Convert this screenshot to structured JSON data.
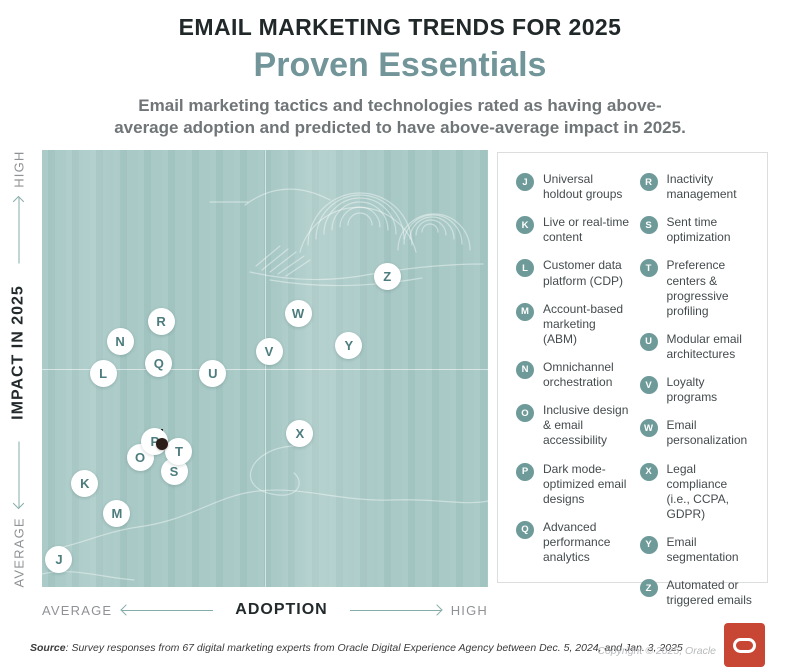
{
  "header": {
    "eyebrow": "EMAIL MARKETING TRENDS FOR 2025",
    "title": "Proven Essentials",
    "description": "Email marketing tactics and technologies rated as having above-average adoption and predicted to have above-average impact in 2025."
  },
  "colors": {
    "plot_background": "#A5C7C4",
    "title_accent": "#719598",
    "marker_letter": "#4C7C7D",
    "legend_dot": "#6E9B99",
    "axis_arrow": "#85ACAA",
    "pin_dot": "#2B1E18",
    "oracle_red": "#C74634"
  },
  "chart_data": {
    "type": "scatter",
    "title": "Proven Essentials",
    "x_axis": {
      "label": "ADOPTION",
      "min_label": "AVERAGE",
      "max_label": "HIGH",
      "range": [
        0,
        100
      ]
    },
    "y_axis": {
      "label": "IMPACT IN 2025",
      "min_label": "AVERAGE",
      "max_label": "HIGH",
      "range": [
        0,
        100
      ]
    },
    "grid": "center-quadrant-lines",
    "legend_position": "right-panel",
    "points": [
      {
        "letter": "J",
        "label": "Universal holdout groups",
        "adoption": 3.8,
        "impact": 6.2
      },
      {
        "letter": "K",
        "label": "Live or real-time content",
        "adoption": 9.6,
        "impact": 23.7
      },
      {
        "letter": "L",
        "label": "Customer data platform (CDP)",
        "adoption": 13.7,
        "impact": 48.9
      },
      {
        "letter": "M",
        "label": "Account-based marketing (ABM)",
        "adoption": 16.8,
        "impact": 16.9
      },
      {
        "letter": "N",
        "label": "Omnichannel orchestration",
        "adoption": 17.5,
        "impact": 56.2
      },
      {
        "letter": "O",
        "label": "Inclusive design & email accessibility",
        "adoption": 22.0,
        "impact": 29.7
      },
      {
        "letter": "P",
        "label": "Dark mode-optimized email designs",
        "adoption": 25.3,
        "impact": 33.3
      },
      {
        "letter": "Q",
        "label": "Advanced performance analytics",
        "adoption": 26.2,
        "impact": 51.1
      },
      {
        "letter": "R",
        "label": "Inactivity management",
        "adoption": 26.7,
        "impact": 60.7
      },
      {
        "letter": "S",
        "label": "Sent time optimization",
        "adoption": 29.6,
        "impact": 26.5
      },
      {
        "letter": "T",
        "label": "Preference centers & progressive profiling",
        "adoption": 30.7,
        "impact": 31.0
      },
      {
        "letter": "U",
        "label": "Modular email architectures",
        "adoption": 38.3,
        "impact": 48.9
      },
      {
        "letter": "V",
        "label": "Loyalty programs",
        "adoption": 50.9,
        "impact": 53.9
      },
      {
        "letter": "W",
        "label": "Email personalization",
        "adoption": 57.4,
        "impact": 62.6
      },
      {
        "letter": "X",
        "label": "Legal compliance (i.e., CCPA, GDPR)",
        "adoption": 57.8,
        "impact": 35.2
      },
      {
        "letter": "Y",
        "label": "Email segmentation",
        "adoption": 68.8,
        "impact": 55.3
      },
      {
        "letter": "Z",
        "label": "Automated or triggered emails",
        "adoption": 77.4,
        "impact": 71.0
      }
    ],
    "pin": {
      "attached_to": "R",
      "adoption": 27.0,
      "impact": 32.8
    }
  },
  "footer": {
    "source_label": "Source",
    "source_rest": ": Survey responses from 67 digital marketing experts from Oracle Digital Experience Agency between Dec. 5, 2024, and Jan. 3, 2025",
    "copyright": "Copyright © 2025, Oracle"
  }
}
